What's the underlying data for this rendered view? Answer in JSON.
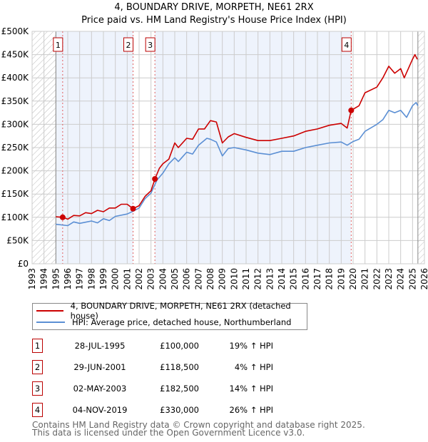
{
  "chart_data": {
    "type": "line",
    "title": "4, BOUNDARY DRIVE, MORPETH, NE61 2RX",
    "subtitle": "Price paid vs. HM Land Registry's House Price Index (HPI)",
    "xlim": [
      1993,
      2026
    ],
    "ylim": [
      0,
      500000
    ],
    "x_ticks": [
      "1993",
      "1994",
      "1995",
      "1996",
      "1997",
      "1998",
      "1999",
      "2000",
      "2001",
      "2002",
      "2003",
      "2004",
      "2005",
      "2006",
      "2007",
      "2008",
      "2009",
      "2010",
      "2011",
      "2012",
      "2013",
      "2014",
      "2015",
      "2016",
      "2017",
      "2018",
      "2019",
      "2020",
      "2021",
      "2022",
      "2023",
      "2024",
      "2025",
      "2026"
    ],
    "y_ticks": [
      {
        "v": 0,
        "label": "£0"
      },
      {
        "v": 50000,
        "label": "£50K"
      },
      {
        "v": 100000,
        "label": "£100K"
      },
      {
        "v": 150000,
        "label": "£150K"
      },
      {
        "v": 200000,
        "label": "£200K"
      },
      {
        "v": 250000,
        "label": "£250K"
      },
      {
        "v": 300000,
        "label": "£300K"
      },
      {
        "v": 350000,
        "label": "£350K"
      },
      {
        "v": 400000,
        "label": "£400K"
      },
      {
        "v": 450000,
        "label": "£450K"
      },
      {
        "v": 500000,
        "label": "£500K"
      }
    ],
    "grid": true,
    "data_start": 1995,
    "data_end": 2025.45,
    "series": [
      {
        "name": "4, BOUNDARY DRIVE, MORPETH, NE61 2RX (detached house)",
        "color": "#cc0000",
        "x": [
          1995,
          1995.57,
          1996,
          1996.5,
          1997,
          1997.5,
          1998,
          1998.5,
          1999,
          1999.5,
          2000,
          2000.5,
          2001,
          2001.49,
          2002,
          2002.5,
          2003,
          2003.33,
          2003.7,
          2004,
          2004.5,
          2005,
          2005.3,
          2006,
          2006.5,
          2007,
          2007.5,
          2008,
          2008.5,
          2009,
          2009.5,
          2010,
          2011,
          2012,
          2013,
          2014,
          2015,
          2016,
          2017,
          2018,
          2019,
          2019.5,
          2019.84,
          2020.5,
          2021,
          2022,
          2022.5,
          2023,
          2023.5,
          2024,
          2024.3,
          2025,
          2025.2,
          2025.4
        ],
        "y": [
          101000,
          100000,
          96000,
          104000,
          103000,
          110000,
          108000,
          115000,
          112000,
          120000,
          120000,
          128000,
          128000,
          118500,
          125000,
          145000,
          157000,
          182500,
          205000,
          215000,
          225000,
          260000,
          250000,
          270000,
          268000,
          290000,
          290000,
          308000,
          305000,
          260000,
          273000,
          280000,
          272000,
          265000,
          265000,
          270000,
          275000,
          285000,
          290000,
          298000,
          302000,
          292000,
          330000,
          340000,
          368000,
          380000,
          400000,
          425000,
          410000,
          420000,
          400000,
          440000,
          450000,
          440000
        ]
      },
      {
        "name": "HPI: Average price, detached house, Northumberland",
        "color": "#5b8fd4",
        "x": [
          1995,
          1996,
          1996.5,
          1997,
          1998,
          1998.5,
          1999,
          1999.5,
          2000,
          2001,
          2001.49,
          2002,
          2002.5,
          2003,
          2003.5,
          2004,
          2004.5,
          2005,
          2005.3,
          2006,
          2006.5,
          2007,
          2007.7,
          2008,
          2008.5,
          2009,
          2009.5,
          2010,
          2011,
          2012,
          2013,
          2014,
          2015,
          2016,
          2017,
          2018,
          2019,
          2019.5,
          2020,
          2020.5,
          2021,
          2022,
          2022.5,
          2023,
          2023.5,
          2024,
          2024.5,
          2025,
          2025.3,
          2025.45
        ],
        "y": [
          85000,
          82000,
          90000,
          87000,
          92000,
          88000,
          97000,
          93000,
          102000,
          107000,
          113000,
          120000,
          140000,
          152000,
          180000,
          195000,
          215000,
          228000,
          220000,
          240000,
          236000,
          255000,
          270000,
          268000,
          262000,
          232000,
          248000,
          250000,
          245000,
          238000,
          235000,
          242000,
          242000,
          250000,
          255000,
          260000,
          262000,
          255000,
          263000,
          268000,
          285000,
          300000,
          310000,
          330000,
          325000,
          330000,
          315000,
          340000,
          347000,
          340000
        ]
      }
    ],
    "sales": [
      {
        "label": "1",
        "x": 1995.57,
        "y": 100000
      },
      {
        "label": "2",
        "x": 2001.49,
        "y": 118500
      },
      {
        "label": "3",
        "x": 2003.33,
        "y": 182500
      },
      {
        "label": "4",
        "x": 2019.84,
        "y": 330000
      }
    ]
  },
  "title": "4, BOUNDARY DRIVE, MORPETH, NE61 2RX",
  "subtitle": "Price paid vs. HM Land Registry's House Price Index (HPI)",
  "legend": {
    "property": "4, BOUNDARY DRIVE, MORPETH, NE61 2RX (detached house)",
    "hpi": "HPI: Average price, detached house, Northumberland"
  },
  "transactions": [
    {
      "num": "1",
      "date": "28-JUL-1995",
      "price": "£100,000",
      "hpi": "19% ↑ HPI"
    },
    {
      "num": "2",
      "date": "29-JUN-2001",
      "price": "£118,500",
      "hpi": "4% ↑ HPI"
    },
    {
      "num": "3",
      "date": "02-MAY-2003",
      "price": "£182,500",
      "hpi": "14% ↑ HPI"
    },
    {
      "num": "4",
      "date": "04-NOV-2019",
      "price": "£330,000",
      "hpi": "26% ↑ HPI"
    }
  ],
  "footer": {
    "line1": "Contains HM Land Registry data © Crown copyright and database right 2025.",
    "line2": "This data is licensed under the Open Government Licence v3.0."
  }
}
